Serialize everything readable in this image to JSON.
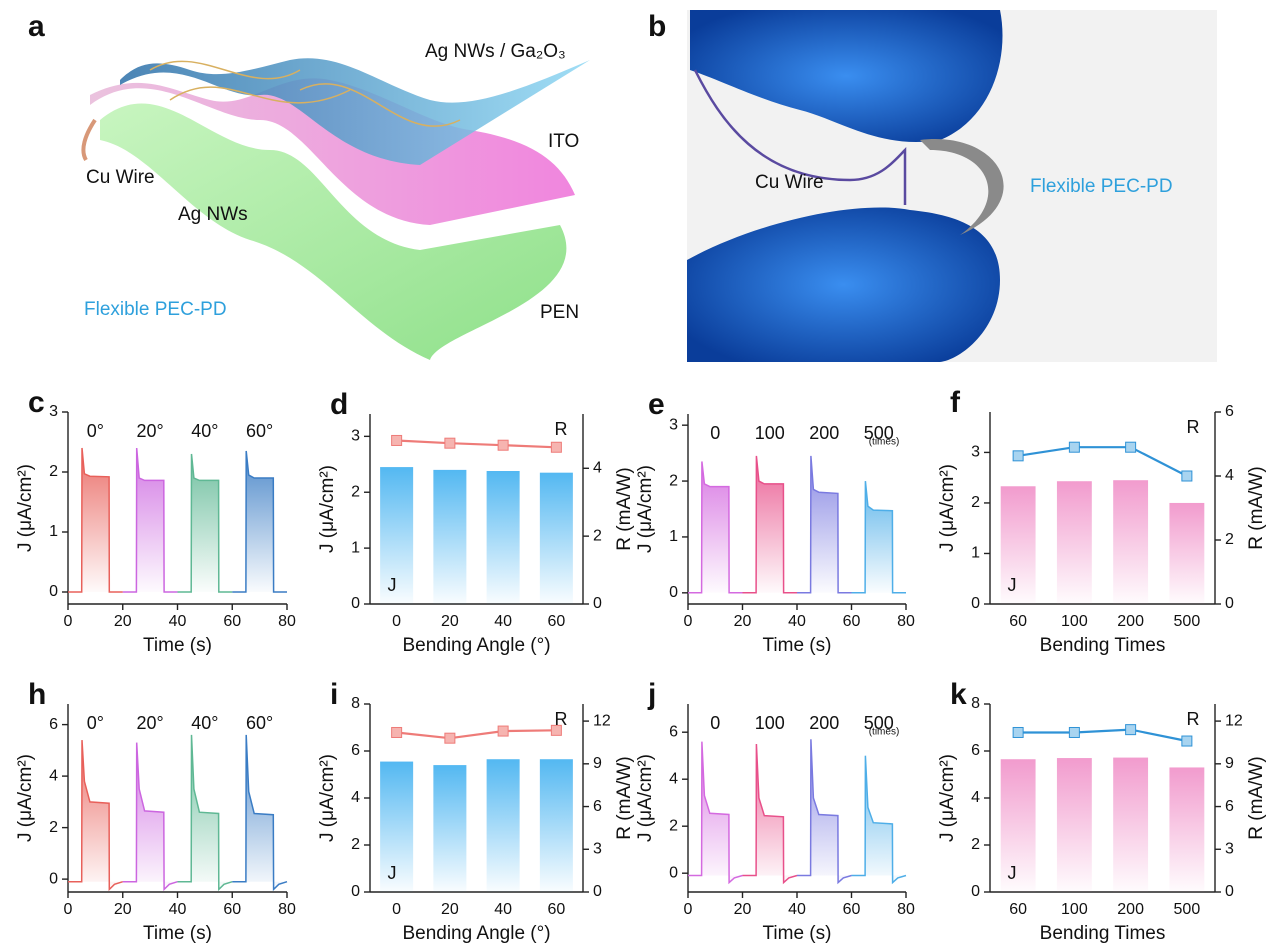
{
  "panel_a": {
    "label": "a",
    "texts": [
      "Ag NWs / Ga₂O₃",
      "ITO",
      "Cu Wire",
      "Ag NWs",
      "Flexible PEC-PD",
      "PEN"
    ]
  },
  "panel_b": {
    "label": "b",
    "texts": [
      "Cu Wire",
      "Flexible PEC-PD"
    ]
  },
  "chart_data": [
    {
      "type": "line",
      "label": "c",
      "xlabel": "Time (s)",
      "ylabel": "J (μA/cm²)",
      "xlim": [
        0,
        80
      ],
      "xticks": [
        0,
        20,
        40,
        60,
        80
      ],
      "ylim": [
        -0.2,
        3
      ],
      "yticks": [
        0,
        1,
        2,
        3
      ],
      "series": [
        {
          "name": "0°",
          "color": "#e8605a",
          "x": [
            0,
            5,
            5.1,
            6,
            8,
            15,
            15.1,
            20
          ],
          "values": [
            0,
            0,
            2.4,
            1.97,
            1.93,
            1.92,
            0,
            0
          ]
        },
        {
          "name": "20°",
          "color": "#cc66e0",
          "x": [
            20,
            25,
            25.1,
            26,
            28,
            35,
            35.1,
            40
          ],
          "values": [
            0,
            0,
            2.4,
            1.9,
            1.86,
            1.86,
            0,
            0
          ]
        },
        {
          "name": "40°",
          "color": "#5fb894",
          "x": [
            40,
            45,
            45.1,
            46,
            48,
            55,
            55.1,
            60
          ],
          "values": [
            0,
            0,
            2.3,
            1.9,
            1.86,
            1.86,
            0,
            0
          ]
        },
        {
          "name": "60°",
          "color": "#3a7cc4",
          "x": [
            60,
            65,
            65.1,
            66,
            68,
            75,
            75.1,
            80
          ],
          "values": [
            0,
            0,
            2.35,
            1.95,
            1.9,
            1.9,
            0,
            0
          ]
        }
      ]
    },
    {
      "type": "bar",
      "label": "d",
      "xlabel": "Bending Angle (°)",
      "ylabel": "J (μA/cm²)",
      "y2label": "R (mA/W)",
      "categories": [
        "0",
        "20",
        "40",
        "60"
      ],
      "ylim": [
        0,
        3.4
      ],
      "yticks": [
        0,
        1,
        2,
        3
      ],
      "y2lim": [
        0,
        5.6
      ],
      "y2ticks": [
        0,
        2,
        4
      ],
      "series": [
        {
          "name": "J",
          "color": "#40b0f0",
          "values": [
            2.45,
            2.4,
            2.38,
            2.35
          ]
        },
        {
          "name": "R",
          "color": "#ee7b78",
          "marker_color": "#f6b4b0",
          "axis": "y2",
          "values": [
            4.82,
            4.74,
            4.68,
            4.62
          ]
        }
      ]
    },
    {
      "type": "line",
      "label": "e",
      "xlabel": "Time (s)",
      "ylabel": "J (μA/cm²)",
      "note": "(times)",
      "xlim": [
        0,
        80
      ],
      "xticks": [
        0,
        20,
        40,
        60,
        80
      ],
      "ylim": [
        -0.2,
        3.2
      ],
      "yticks": [
        0,
        1,
        2,
        3
      ],
      "series": [
        {
          "name": "0",
          "color": "#d46ae0",
          "x": [
            0,
            5,
            5.1,
            6,
            8,
            15,
            15.1,
            20
          ],
          "values": [
            0,
            0,
            2.35,
            1.95,
            1.9,
            1.9,
            0,
            0
          ]
        },
        {
          "name": "100",
          "color": "#e8508a",
          "x": [
            20,
            25,
            25.1,
            26,
            28,
            35,
            35.1,
            40
          ],
          "values": [
            0,
            0,
            2.45,
            2.0,
            1.95,
            1.95,
            0,
            0
          ]
        },
        {
          "name": "200",
          "color": "#7a7ae0",
          "x": [
            40,
            45,
            45.1,
            46,
            48,
            55,
            55.1,
            60
          ],
          "values": [
            0,
            0,
            2.45,
            1.85,
            1.8,
            1.78,
            0,
            0
          ]
        },
        {
          "name": "500",
          "color": "#4eaee8",
          "x": [
            60,
            65,
            65.1,
            66,
            68,
            75,
            75.1,
            80
          ],
          "values": [
            0,
            0,
            2.0,
            1.55,
            1.48,
            1.47,
            0,
            0
          ]
        }
      ]
    },
    {
      "type": "bar",
      "label": "f",
      "xlabel": "Bending Times",
      "ylabel": "J (μA/cm²)",
      "y2label": "R (mA/W)",
      "categories": [
        "60",
        "100",
        "200",
        "500"
      ],
      "ylim": [
        0,
        3.8
      ],
      "yticks": [
        0,
        1,
        2,
        3
      ],
      "y2lim": [
        0,
        6
      ],
      "y2ticks": [
        0,
        2,
        4,
        6
      ],
      "series": [
        {
          "name": "J",
          "color": "#f090c8",
          "values": [
            2.33,
            2.43,
            2.45,
            2.0
          ]
        },
        {
          "name": "R",
          "color": "#2f92d6",
          "marker_color": "#a8d4f0",
          "axis": "y2",
          "values": [
            4.63,
            4.9,
            4.9,
            4.0
          ]
        }
      ]
    },
    {
      "type": "line",
      "label": "h",
      "xlabel": "Time (s)",
      "ylabel": "J (μA/cm²)",
      "xlim": [
        0,
        80
      ],
      "xticks": [
        0,
        20,
        40,
        60,
        80
      ],
      "ylim": [
        -0.5,
        6.8
      ],
      "yticks": [
        0,
        2,
        4,
        6
      ],
      "series": [
        {
          "name": "0°",
          "color": "#e8605a",
          "x": [
            0,
            5,
            5.1,
            6,
            8,
            15,
            15.1,
            17,
            20
          ],
          "values": [
            -0.1,
            -0.1,
            5.4,
            3.8,
            3.0,
            2.95,
            -0.4,
            -0.2,
            -0.1
          ]
        },
        {
          "name": "20°",
          "color": "#cc66e0",
          "x": [
            20,
            25,
            25.1,
            26,
            28,
            35,
            35.1,
            37,
            40
          ],
          "values": [
            -0.1,
            -0.1,
            5.3,
            3.5,
            2.65,
            2.6,
            -0.4,
            -0.2,
            -0.1
          ]
        },
        {
          "name": "40°",
          "color": "#5fb894",
          "x": [
            40,
            45,
            45.1,
            46,
            48,
            55,
            55.1,
            57,
            60
          ],
          "values": [
            -0.1,
            -0.1,
            5.6,
            3.5,
            2.6,
            2.55,
            -0.4,
            -0.2,
            -0.1
          ]
        },
        {
          "name": "60°",
          "color": "#3a7cc4",
          "x": [
            60,
            65,
            65.1,
            66,
            68,
            75,
            75.1,
            77,
            80
          ],
          "values": [
            -0.1,
            -0.1,
            5.6,
            3.4,
            2.55,
            2.5,
            -0.4,
            -0.2,
            -0.1
          ]
        }
      ]
    },
    {
      "type": "bar",
      "label": "i",
      "xlabel": "Bending Angle (°)",
      "ylabel": "J (μA/cm²)",
      "y2label": "R (mA/W)",
      "categories": [
        "0",
        "20",
        "40",
        "60"
      ],
      "ylim": [
        0,
        8
      ],
      "yticks": [
        0,
        2,
        4,
        6,
        8
      ],
      "y2lim": [
        0,
        13.2
      ],
      "y2ticks": [
        0,
        3,
        6,
        9,
        12
      ],
      "series": [
        {
          "name": "J",
          "color": "#40b0f0",
          "values": [
            5.55,
            5.4,
            5.65,
            5.65
          ]
        },
        {
          "name": "R",
          "color": "#ee7b78",
          "marker_color": "#f6b4b0",
          "axis": "y2",
          "values": [
            11.2,
            10.8,
            11.3,
            11.35
          ]
        }
      ]
    },
    {
      "type": "line",
      "label": "j",
      "xlabel": "Time (s)",
      "ylabel": "J (μA/cm²)",
      "note": "(times)",
      "xlim": [
        0,
        80
      ],
      "xticks": [
        0,
        20,
        40,
        60,
        80
      ],
      "ylim": [
        -0.8,
        7.2
      ],
      "yticks": [
        0,
        2,
        4,
        6
      ],
      "series": [
        {
          "name": "0",
          "color": "#d46ae0",
          "x": [
            0,
            5,
            5.1,
            6,
            8,
            15,
            15.1,
            17,
            20
          ],
          "values": [
            -0.1,
            -0.1,
            5.6,
            3.3,
            2.55,
            2.5,
            -0.4,
            -0.2,
            -0.1
          ]
        },
        {
          "name": "100",
          "color": "#e8508a",
          "x": [
            20,
            25,
            25.1,
            26,
            28,
            35,
            35.1,
            37,
            40
          ],
          "values": [
            -0.1,
            -0.1,
            5.5,
            3.2,
            2.45,
            2.4,
            -0.4,
            -0.2,
            -0.1
          ]
        },
        {
          "name": "200",
          "color": "#7a7ae0",
          "x": [
            40,
            45,
            45.1,
            46,
            48,
            55,
            55.1,
            57,
            60
          ],
          "values": [
            -0.1,
            -0.1,
            5.7,
            3.2,
            2.5,
            2.45,
            -0.4,
            -0.2,
            -0.1
          ]
        },
        {
          "name": "500",
          "color": "#4eaee8",
          "x": [
            60,
            65,
            65.1,
            66,
            68,
            75,
            75.1,
            77,
            80
          ],
          "values": [
            -0.1,
            -0.1,
            5.0,
            2.8,
            2.15,
            2.1,
            -0.4,
            -0.2,
            -0.1
          ]
        }
      ]
    },
    {
      "type": "bar",
      "label": "k",
      "xlabel": "Bending Times",
      "ylabel": "J (μA/cm²)",
      "y2label": "R (mA/W)",
      "categories": [
        "60",
        "100",
        "200",
        "500"
      ],
      "ylim": [
        0,
        8
      ],
      "yticks": [
        0,
        2,
        4,
        6,
        8
      ],
      "y2lim": [
        0,
        13.2
      ],
      "y2ticks": [
        0,
        3,
        6,
        9,
        12
      ],
      "series": [
        {
          "name": "J",
          "color": "#f090c8",
          "values": [
            5.65,
            5.7,
            5.72,
            5.3
          ]
        },
        {
          "name": "R",
          "color": "#2f92d6",
          "marker_color": "#a8d4f0",
          "axis": "y2",
          "values": [
            11.2,
            11.2,
            11.4,
            10.6
          ]
        }
      ]
    }
  ]
}
